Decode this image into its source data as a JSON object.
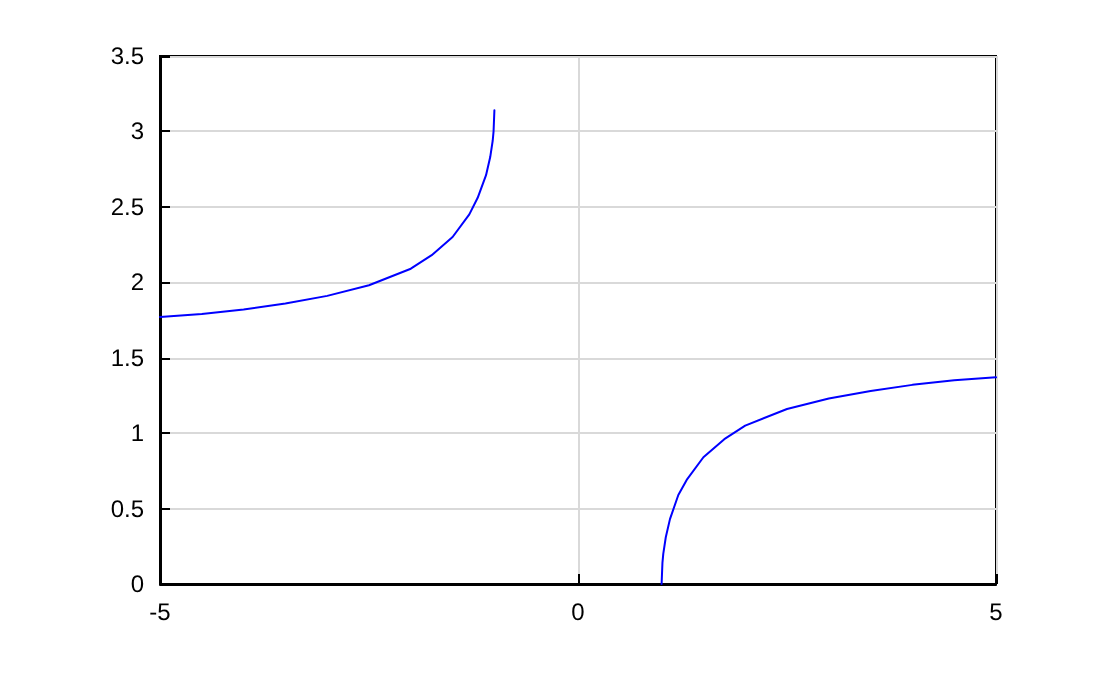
{
  "chart_data": {
    "type": "line",
    "xlim": [
      -5,
      5
    ],
    "xticks": [
      -5,
      0,
      5
    ],
    "ylim": [
      0,
      3.5
    ],
    "yticks": [
      0,
      0.5,
      1,
      1.5,
      2,
      2.5,
      3,
      3.5
    ],
    "grid": true,
    "marker": "none",
    "line_style": "solid",
    "series": [
      {
        "color": "#0000ff",
        "x": [
          -5,
          -4.5,
          -4,
          -3.5,
          -3,
          -2.5,
          -2,
          -1.75,
          -1.5,
          -1.3,
          -1.2,
          -1.1,
          -1.05,
          -1.02,
          -1.01,
          -1
        ],
        "values": [
          1.77,
          1.79,
          1.82,
          1.86,
          1.91,
          1.98,
          2.09,
          2.18,
          2.3,
          2.45,
          2.56,
          2.71,
          2.83,
          2.94,
          3.0,
          3.14
        ]
      },
      {
        "color": "#0000ff",
        "x": [
          1,
          1.01,
          1.02,
          1.05,
          1.1,
          1.2,
          1.3,
          1.5,
          1.75,
          2,
          2.5,
          3,
          3.5,
          4,
          4.5,
          5
        ],
        "values": [
          0,
          0.14,
          0.2,
          0.31,
          0.43,
          0.59,
          0.69,
          0.84,
          0.96,
          1.05,
          1.16,
          1.23,
          1.28,
          1.32,
          1.35,
          1.37
        ]
      }
    ]
  }
}
